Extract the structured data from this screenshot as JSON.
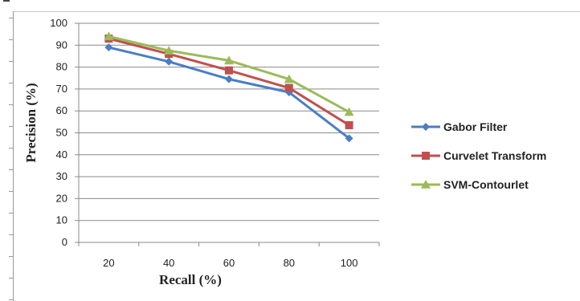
{
  "chart_data": {
    "type": "line",
    "xlabel": "Recall (%)",
    "ylabel": "Precision (%)",
    "categories": [
      "20",
      "40",
      "60",
      "80",
      "100"
    ],
    "ylim": [
      0,
      100
    ],
    "yticks": [
      "0",
      "10",
      "20",
      "30",
      "40",
      "50",
      "60",
      "70",
      "80",
      "90",
      "100"
    ],
    "grid": "horizontal",
    "legend_position": "right",
    "series": [
      {
        "name": "Gabor Filter",
        "values": [
          89,
          82.5,
          74.5,
          68.5,
          47.5
        ],
        "color": "#4a7ec5",
        "marker": "diamond"
      },
      {
        "name": "Curvelet Transform",
        "values": [
          93,
          86,
          78.5,
          70.5,
          53.5
        ],
        "color": "#c0504d",
        "marker": "square"
      },
      {
        "name": "SVM-Contourlet",
        "values": [
          94,
          87.5,
          83,
          74.5,
          59.5
        ],
        "color": "#9bbb59",
        "marker": "triangle"
      }
    ]
  }
}
